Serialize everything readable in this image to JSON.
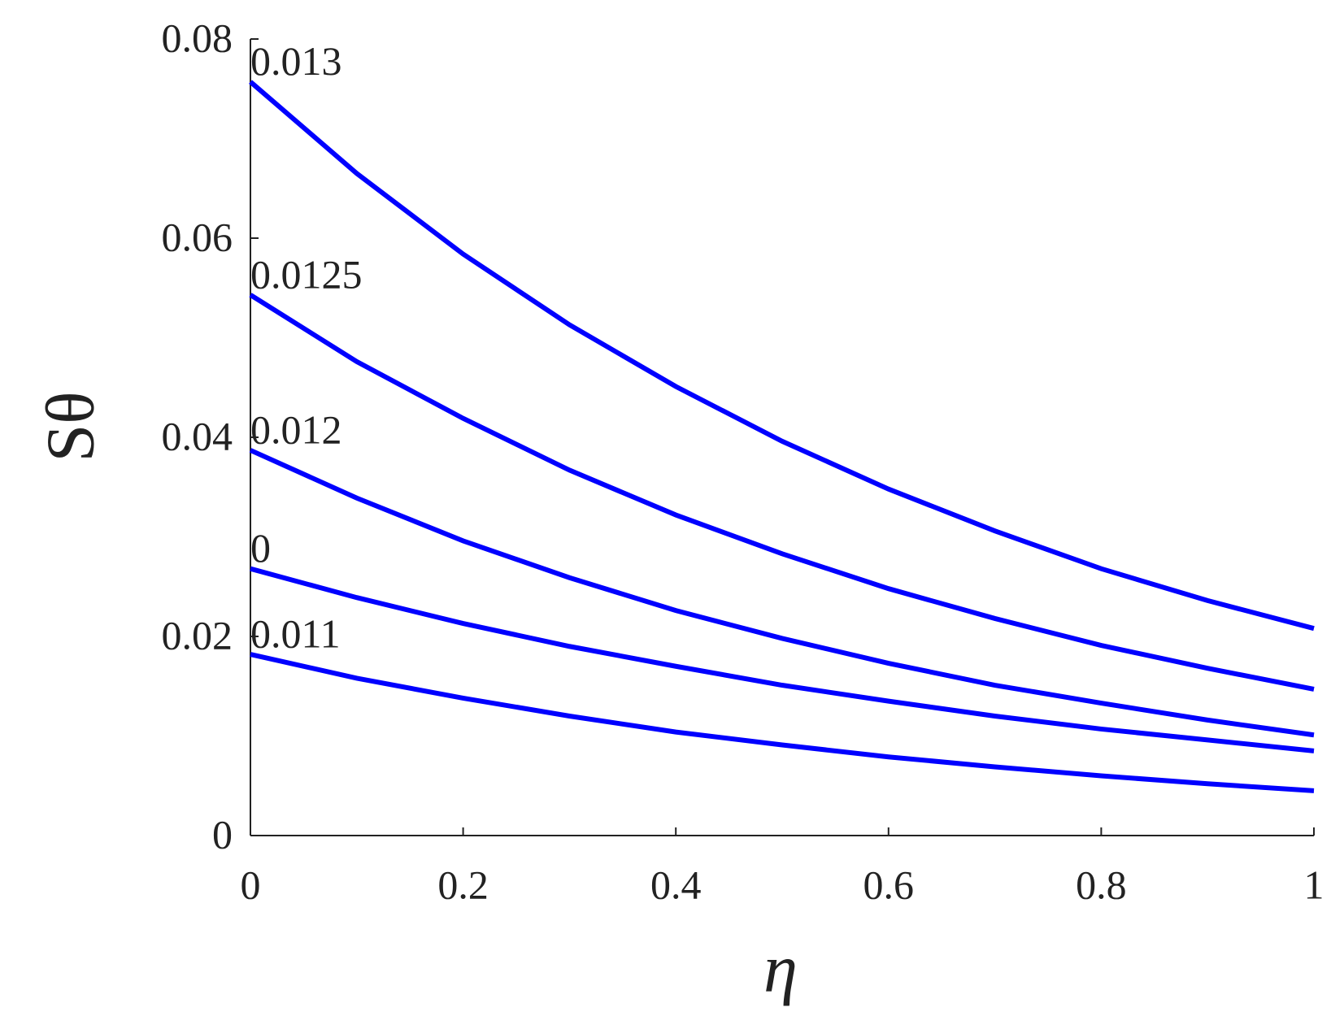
{
  "chart_data": {
    "type": "line",
    "x_label": "η",
    "y_label": "Sθ",
    "x": [
      0,
      0.1,
      0.2,
      0.3,
      0.4,
      0.5,
      0.6,
      0.7,
      0.8,
      0.9,
      1
    ],
    "series": [
      {
        "name": "0.013",
        "color": "#0000ff",
        "values": [
          0.0757,
          0.0665,
          0.0584,
          0.0513,
          0.0451,
          0.0396,
          0.0348,
          0.0306,
          0.0268,
          0.0236,
          0.0208
        ]
      },
      {
        "name": "0.0125",
        "color": "#0000ff",
        "values": [
          0.0543,
          0.0476,
          0.0419,
          0.0367,
          0.0322,
          0.0283,
          0.0248,
          0.0218,
          0.0191,
          0.0168,
          0.0147
        ]
      },
      {
        "name": "0.012",
        "color": "#0000ff",
        "values": [
          0.0387,
          0.0339,
          0.0296,
          0.0259,
          0.0226,
          0.0198,
          0.0173,
          0.0151,
          0.0133,
          0.0116,
          0.0101
        ]
      },
      {
        "name": "0",
        "color": "#0000ff",
        "values": [
          0.0268,
          0.0239,
          0.0213,
          0.019,
          0.017,
          0.0151,
          0.0135,
          0.012,
          0.0107,
          0.0096,
          0.0085
        ]
      },
      {
        "name": "0.011",
        "color": "#0000ff",
        "values": [
          0.0182,
          0.0158,
          0.0138,
          0.012,
          0.0104,
          0.0091,
          0.0079,
          0.0069,
          0.006,
          0.0052,
          0.0045
        ]
      }
    ],
    "xlim": [
      0,
      1
    ],
    "xticks": [
      0,
      0.2,
      0.4,
      0.6,
      0.8,
      1
    ],
    "ylim": [
      0,
      0.08
    ],
    "yticks": [
      0,
      0.02,
      0.04,
      0.06,
      0.08
    ],
    "grid": false
  }
}
